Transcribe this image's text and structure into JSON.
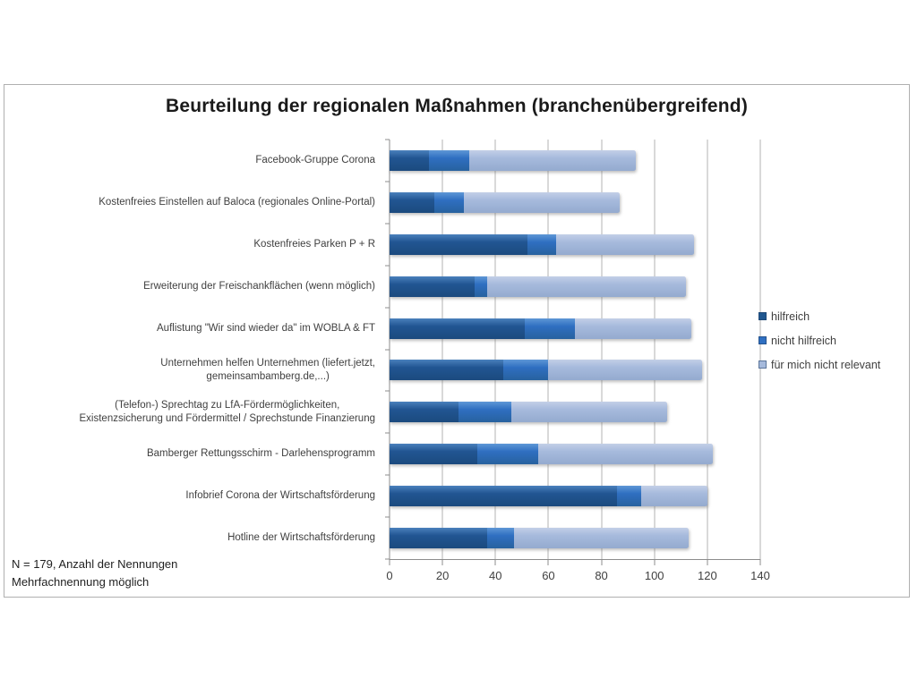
{
  "chart": {
    "footnote_line1": "N = 179, Anzahl der Nennungen",
    "footnote_line2": "Mehrfachnennung möglich"
  },
  "chart_data": {
    "type": "bar",
    "orientation": "horizontal",
    "stacked": true,
    "title": "Beurteilung der regionalen Maßnahmen (branchenübergreifend)",
    "categories": [
      "Facebook-Gruppe Corona",
      "Kostenfreies Einstellen auf Baloca (regionales Online-Portal)",
      "Kostenfreies Parken P + R",
      "Erweiterung der Freischankflächen (wenn möglich)",
      "Auflistung \"Wir sind wieder da\" im WOBLA & FT",
      "Unternehmen helfen Unternehmen (liefert.jetzt,\ngemeinsambamberg.de,...)",
      "(Telefon-) Sprechtag zu LfA-Fördermöglichkeiten,\nExistenzsicherung und Fördermittel / Sprechstunde Finanzierung",
      "Bamberger Rettungsschirm - Darlehensprogramm",
      "Infobrief Corona der Wirtschaftsförderung",
      "Hotline der Wirtschaftsförderung"
    ],
    "series": [
      {
        "name": "hilfreich",
        "color": "#20578f",
        "values": [
          15,
          17,
          52,
          32,
          51,
          43,
          26,
          33,
          86,
          37
        ]
      },
      {
        "name": "nicht hilfreich",
        "color": "#2f6fc1",
        "values": [
          15,
          11,
          11,
          5,
          19,
          17,
          20,
          23,
          9,
          10
        ]
      },
      {
        "name": "für mich nicht relevant",
        "color": "#a6badc",
        "values": [
          63,
          59,
          52,
          75,
          44,
          58,
          59,
          66,
          25,
          66
        ]
      }
    ],
    "xlim": [
      0,
      140
    ],
    "xticks": [
      0,
      20,
      40,
      60,
      80,
      100,
      120,
      140
    ],
    "grid": "vertical",
    "legend_position": "right",
    "annotations": [
      "N = 179, Anzahl der Nennungen",
      "Mehrfachnennung möglich"
    ]
  }
}
